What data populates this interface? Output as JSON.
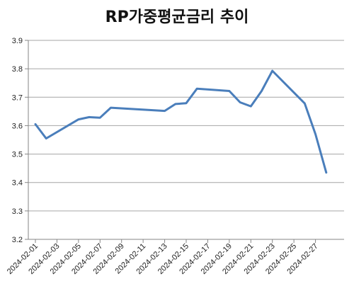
{
  "chart_data": {
    "type": "line",
    "title": "RP가중평균금리 추이",
    "xlabel": "",
    "ylabel": "",
    "ylim": [
      3.2,
      3.9
    ],
    "yticks": [
      "3.2",
      "3.3",
      "3.4",
      "3.5",
      "3.6",
      "3.7",
      "3.8",
      "3.9"
    ],
    "x_tick_labels": [
      "2024-02-01",
      "2024-02-03",
      "2024-02-05",
      "2024-02-07",
      "2024-02-09",
      "2024-02-11",
      "2024-02-13",
      "2024-02-15",
      "2024-02-17",
      "2024-02-19",
      "2024-02-21",
      "2024-02-23",
      "2024-02-25",
      "2024-02-27"
    ],
    "x_range": [
      "2024-02-01",
      "2024-02-29"
    ],
    "grid": "horizontal",
    "legend": "none",
    "series_color": "#4a7ebb",
    "series": [
      {
        "x": [
          "2024-02-01",
          "2024-02-02",
          "2024-02-05",
          "2024-02-06",
          "2024-02-07",
          "2024-02-08",
          "2024-02-13",
          "2024-02-14",
          "2024-02-15",
          "2024-02-16",
          "2024-02-19",
          "2024-02-20",
          "2024-02-21",
          "2024-02-22",
          "2024-02-23",
          "2024-02-26",
          "2024-02-27",
          "2024-02-28"
        ],
        "values": [
          3.605,
          3.555,
          3.622,
          3.63,
          3.628,
          3.663,
          3.652,
          3.676,
          3.679,
          3.73,
          3.722,
          3.682,
          3.668,
          3.722,
          3.793,
          3.678,
          3.57,
          3.435
        ]
      }
    ]
  }
}
